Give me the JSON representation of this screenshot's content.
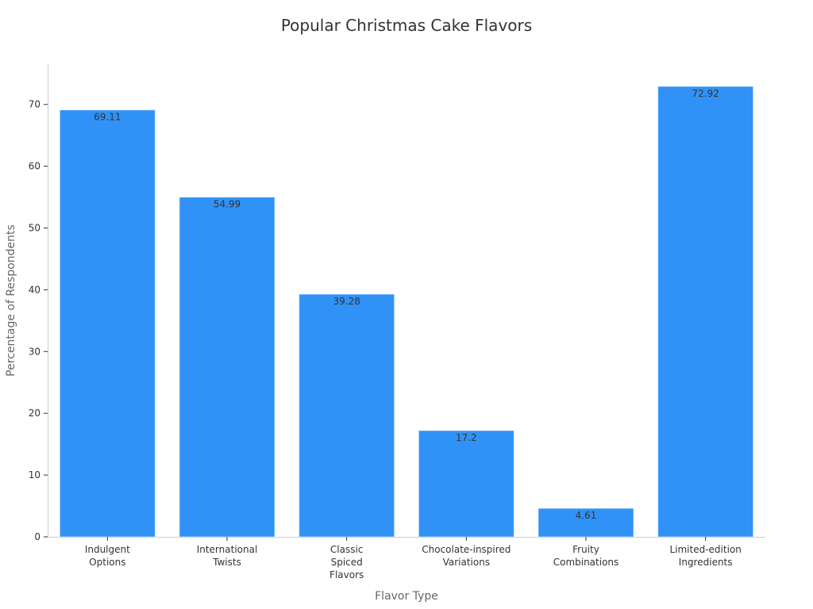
{
  "chart_data": {
    "type": "bar",
    "title": "Popular Christmas Cake Flavors",
    "xlabel": "Flavor Type",
    "ylabel": "Percentage of Respondents",
    "categories": [
      [
        "Indulgent",
        "Options"
      ],
      [
        "International",
        "Twists"
      ],
      [
        "Classic",
        "Spiced",
        "Flavors"
      ],
      [
        "Chocolate-inspired",
        "Variations"
      ],
      [
        "Fruity",
        "Combinations"
      ],
      [
        "Limited-edition",
        "Ingredients"
      ]
    ],
    "values": [
      69.11,
      54.99,
      39.28,
      17.2,
      4.61,
      72.92
    ],
    "data_labels": [
      "69.11",
      "54.99",
      "39.28",
      "17.2",
      "4.61",
      "72.92"
    ],
    "y_ticks": [
      0,
      10,
      20,
      30,
      40,
      50,
      60,
      70
    ],
    "ylim": [
      0,
      76.6
    ],
    "bar_color": "#3092f7",
    "grid": false
  }
}
